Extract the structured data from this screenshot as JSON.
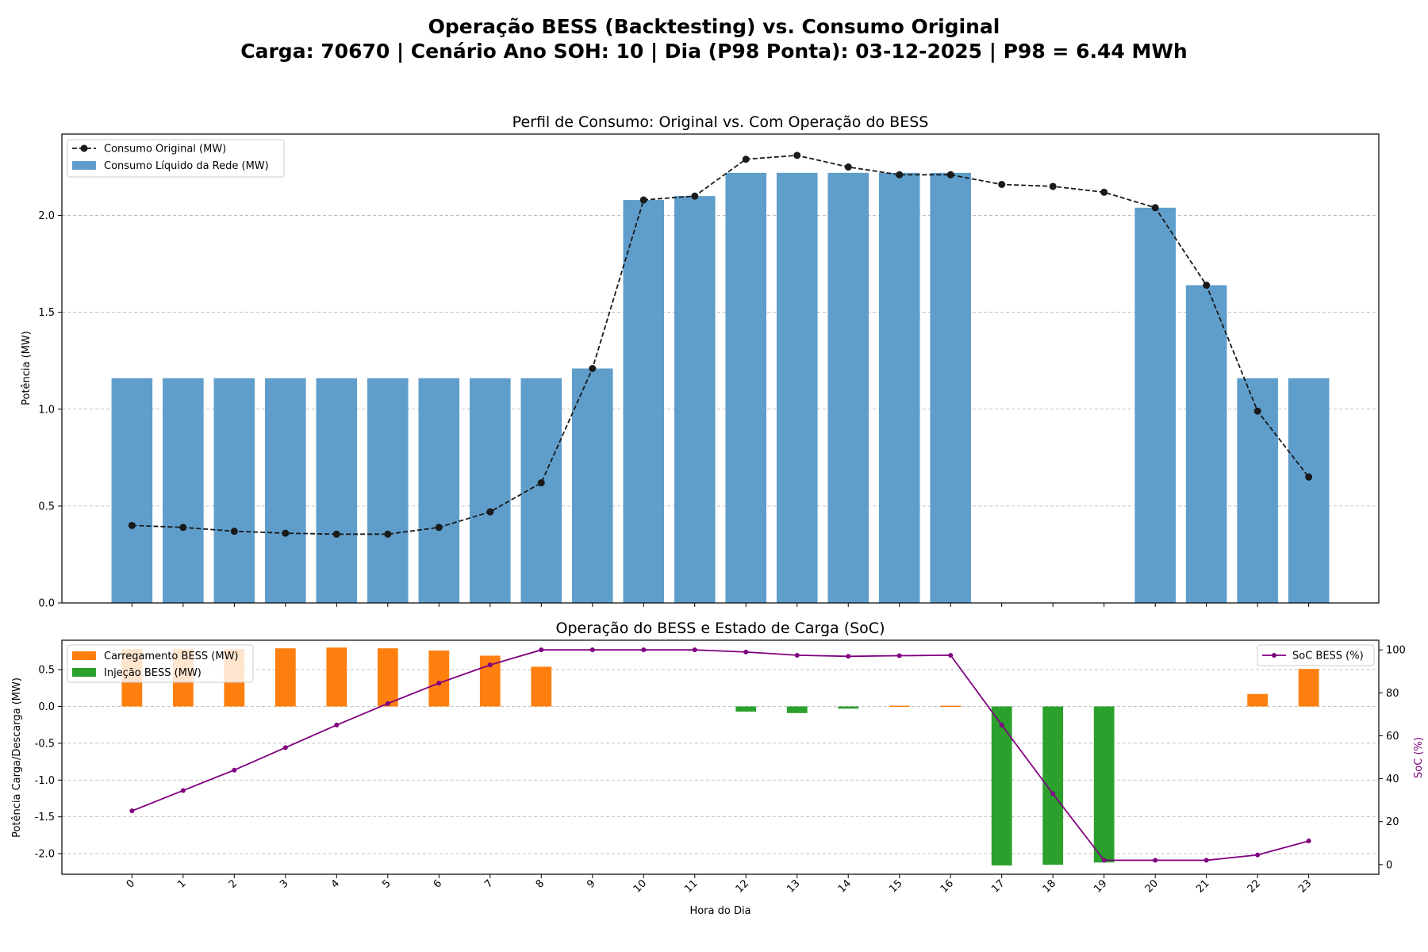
{
  "figure": {
    "suptitle_line1": "Operação BESS (Backtesting) vs. Consumo Original",
    "suptitle_line2": "Carga: 70670 | Cenário Ano SOH: 10 | Dia (P98 Ponta): 03-12-2025 | P98 = 6.44 MWh"
  },
  "colors": {
    "grid_bar": "#5f9ecb",
    "original_line": "#1a1a1a",
    "charge": "#ff7f0e",
    "discharge": "#2ca02c",
    "soc": "#800080"
  },
  "chart_data": [
    {
      "type": "bar",
      "title": "Perfil de Consumo: Original vs. Com Operação do BESS",
      "xlabel": "",
      "ylabel": "Potência (MW)",
      "ylim": [
        0,
        2.42
      ],
      "yticks": [
        0.0,
        0.5,
        1.0,
        1.5,
        2.0
      ],
      "grid": "y-dashed",
      "legend_position": "upper-left",
      "categories": [
        "0",
        "1",
        "2",
        "3",
        "4",
        "5",
        "6",
        "7",
        "8",
        "9",
        "10",
        "11",
        "12",
        "13",
        "14",
        "15",
        "16",
        "17",
        "18",
        "19",
        "20",
        "21",
        "22",
        "23"
      ],
      "series": [
        {
          "name": "Consumo Original (MW)",
          "kind": "line-dashed-markers",
          "values": [
            0.4,
            0.39,
            0.37,
            0.36,
            0.355,
            0.355,
            0.39,
            0.47,
            0.62,
            1.21,
            2.08,
            2.1,
            2.29,
            2.31,
            2.25,
            2.21,
            2.21,
            2.16,
            2.15,
            2.12,
            2.04,
            1.64,
            0.99,
            0.65
          ]
        },
        {
          "name": "Consumo Líquido da Rede (MW)",
          "kind": "bar",
          "values": [
            1.16,
            1.16,
            1.16,
            1.16,
            1.16,
            1.16,
            1.16,
            1.16,
            1.16,
            1.21,
            2.08,
            2.1,
            2.22,
            2.22,
            2.22,
            2.22,
            2.22,
            0,
            0,
            0,
            2.04,
            1.64,
            1.16,
            1.16
          ]
        }
      ]
    },
    {
      "type": "bar",
      "title": "Operação do BESS e Estado de Carga (SoC)",
      "xlabel": "Hora do Dia",
      "ylabel": "Potência Carga/Descarga (MW)",
      "ylabel_right": "SoC (%)",
      "ylim": [
        -2.28,
        0.9
      ],
      "yticks": [
        -2.0,
        -1.5,
        -1.0,
        -0.5,
        0.0,
        0.5
      ],
      "ylim_right": [
        -4.5,
        104.5
      ],
      "yticks_right": [
        0,
        20,
        40,
        60,
        80,
        100
      ],
      "grid": "y-dashed",
      "legend_position": "upper-left",
      "legend_right_position": "upper-right",
      "categories": [
        "0",
        "1",
        "2",
        "3",
        "4",
        "5",
        "6",
        "7",
        "8",
        "9",
        "10",
        "11",
        "12",
        "13",
        "14",
        "15",
        "16",
        "17",
        "18",
        "19",
        "20",
        "21",
        "22",
        "23"
      ],
      "series": [
        {
          "name": "Carregamento BESS (MW)",
          "kind": "bar",
          "values": [
            0.78,
            0.78,
            0.78,
            0.79,
            0.8,
            0.79,
            0.76,
            0.69,
            0.54,
            0,
            0,
            0,
            0,
            0,
            0,
            0.01,
            0.01,
            0,
            0,
            0,
            0,
            0,
            0.17,
            0.51
          ]
        },
        {
          "name": "Injeção BESS (MW)",
          "kind": "bar",
          "values": [
            0,
            0,
            0,
            0,
            0,
            0,
            0,
            0,
            0,
            0,
            0,
            0,
            -0.07,
            -0.09,
            -0.03,
            0,
            0,
            -2.16,
            -2.15,
            -2.12,
            0,
            0,
            0,
            0
          ]
        },
        {
          "name": "SoC BESS (%)",
          "kind": "line-markers-right-axis",
          "values": [
            25,
            34.5,
            44,
            54.5,
            65,
            75,
            84.5,
            93,
            100,
            100,
            100,
            100,
            99,
            97.5,
            97,
            97.3,
            97.5,
            65,
            33,
            2,
            2,
            2,
            4.5,
            11
          ]
        }
      ]
    }
  ]
}
